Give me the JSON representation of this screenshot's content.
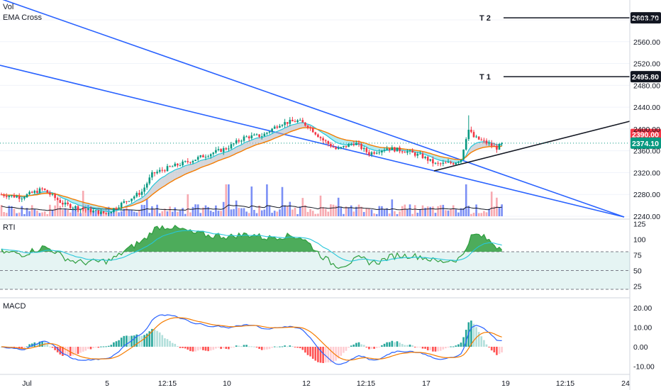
{
  "legend": {
    "vol": "Vol",
    "ema": "EMA Cross"
  },
  "colors": {
    "up": "#089981",
    "down": "#f23645",
    "trend": "#2962ff",
    "ema_fast": "#26c6da",
    "ema_slow": "#f57c00",
    "macd": "#2962ff",
    "signal": "#f57c00",
    "rti": "#26a69a"
  },
  "targets": [
    {
      "label": "T 2",
      "price": 2603.7,
      "tag": "2603.70"
    },
    {
      "label": "T 1",
      "price": 2495.8,
      "tag": "2495.80"
    }
  ],
  "price_tags": [
    {
      "price": 2390.0,
      "text": "2390.00",
      "color": "#f23645"
    },
    {
      "price": 2374.1,
      "text": "2374.10",
      "color": "#089981"
    }
  ],
  "chart_data": [
    {
      "type": "candlestick",
      "yaxis_ticks": [
        "2600.00",
        "2560.00",
        "2520.00",
        "2480.00",
        "2440.00",
        "2400.00",
        "2360.00",
        "2320.00",
        "2280.00",
        "2240.00"
      ],
      "ylim": [
        2232,
        2615
      ],
      "xaxis_ticks": [
        "Jul",
        "5",
        "12:15",
        "10",
        "12",
        "12:15",
        "17",
        "19",
        "12:15",
        "24"
      ]
    },
    {
      "type": "line",
      "title": "RTI",
      "yaxis_ticks": [
        "125",
        "100",
        "75",
        "50",
        "25"
      ],
      "levels": [
        80,
        50,
        20
      ]
    },
    {
      "type": "bar",
      "title": "MACD",
      "yaxis_ticks": [
        "20.00",
        "10.00",
        "0.00",
        "-10.00"
      ]
    }
  ]
}
